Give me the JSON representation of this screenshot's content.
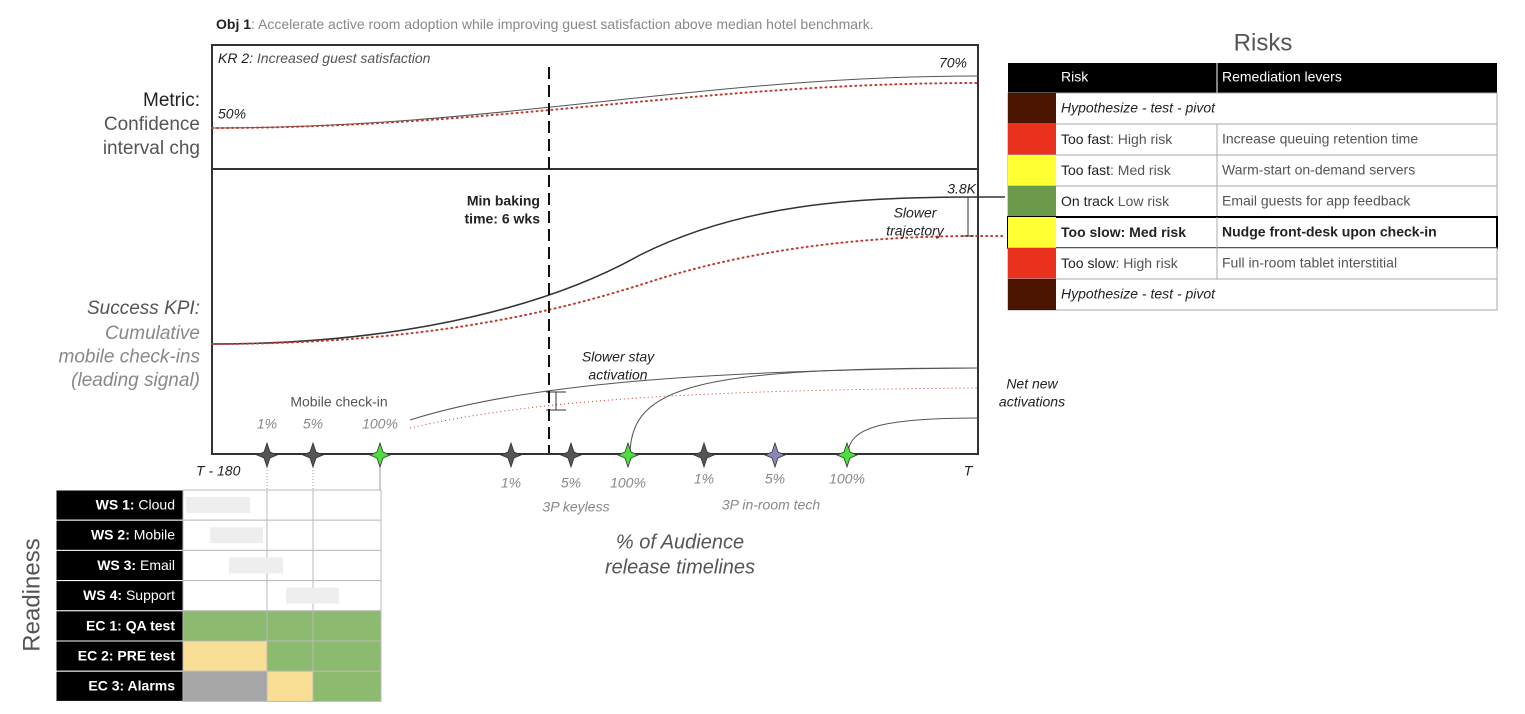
{
  "objective": {
    "label": "Obj 1",
    "text": ": Accelerate active room adoption while improving guest satisfaction above median hotel benchmark."
  },
  "metric_panel": {
    "label": "KR 2:",
    "text": " Increased guest satisfaction",
    "start": "50%",
    "end": "70%",
    "side_title": "Metric:",
    "side_lines": [
      "Confidence",
      "interval chg"
    ]
  },
  "kpi_panel": {
    "side_title": "Success KPI:",
    "side_lines": [
      "Cumulative",
      "mobile check-ins",
      "(leading signal)"
    ],
    "end": "3.8K",
    "gap_label": [
      "Slower",
      "trajectory"
    ]
  },
  "annotations": {
    "baking": [
      "Min baking",
      "time: 6 wks"
    ],
    "stay": [
      "Slower stay",
      "activation"
    ],
    "net_new": [
      "Net new",
      "activations"
    ]
  },
  "timeline": {
    "start": "T - 180",
    "end": "T",
    "title": [
      "% of Audience",
      "release timelines"
    ],
    "releases": [
      {
        "name": "Mobile check-in",
        "steps": [
          "1%",
          "5%",
          "100%"
        ]
      },
      {
        "name": "3P keyless",
        "steps": [
          "1%",
          "5%",
          "100%"
        ]
      },
      {
        "name": "3P in-room tech",
        "steps": [
          "1%",
          "5%",
          "100%"
        ]
      }
    ]
  },
  "risks": {
    "title": "Risks",
    "headers": [
      "Risk",
      "Remediation levers"
    ],
    "rows": [
      {
        "color": "#4a1400",
        "risk": "Hypothesize - test - pivot"
      },
      {
        "color": "#e8321e",
        "risk": "Too fast",
        "detail": ": High risk",
        "lever": "Increase queuing retention time"
      },
      {
        "color": "#ffff33",
        "risk": "Too fast",
        "detail": ": Med risk",
        "lever": "Warm-start on-demand servers"
      },
      {
        "color": "#6a9a4a",
        "risk": "On track",
        "detail": " Low risk",
        "lever": "Email guests for app feedback"
      },
      {
        "color": "#ffff33",
        "risk": "Too slow: Med risk",
        "lever": "Nudge front-desk upon check-in",
        "emphasis": true
      },
      {
        "color": "#e8321e",
        "risk": "Too slow",
        "detail": ": High risk",
        "lever": "Full in-room tablet interstitial"
      },
      {
        "color": "#4a1400",
        "risk": "Hypothesize - test - pivot"
      }
    ]
  },
  "readiness": {
    "title": "Readiness",
    "rows": [
      {
        "label": "WS 1:",
        "text": " Cloud"
      },
      {
        "label": "WS 2:",
        "text": " Mobile"
      },
      {
        "label": "WS 3:",
        "text": " Email"
      },
      {
        "label": "WS 4:",
        "text": " Support"
      },
      {
        "label": "EC 1: QA test",
        "cells": [
          "#8cba6e",
          "#8cba6e",
          "#8cba6e"
        ]
      },
      {
        "label": "EC 2: PRE test",
        "cells": [
          "#f8df95",
          "#8cba6e",
          "#8cba6e"
        ]
      },
      {
        "label": "EC 3: Alarms",
        "cells": [
          "#a6a6a6",
          "#f8df95",
          "#8cba6e"
        ]
      }
    ]
  }
}
